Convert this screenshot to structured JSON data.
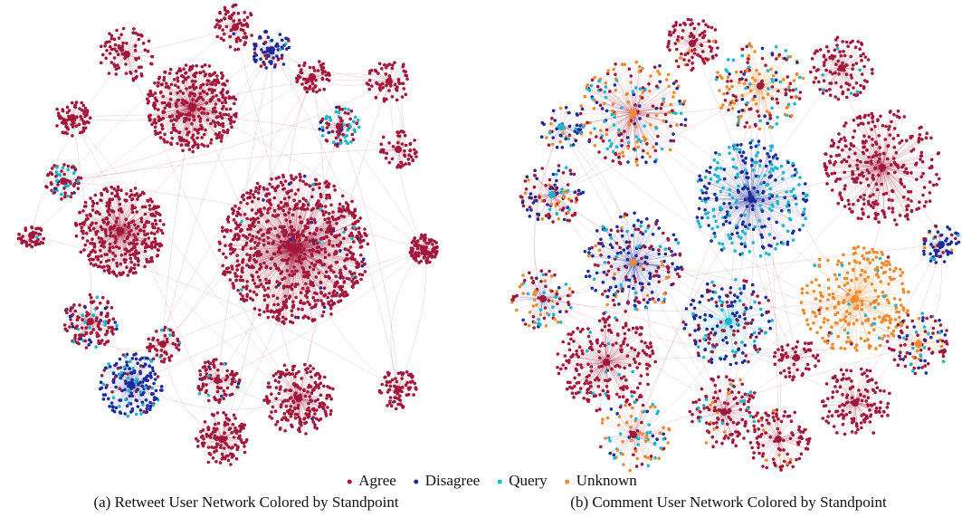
{
  "legend": [
    {
      "name": "Agree",
      "color": "#a3173a"
    },
    {
      "name": "Disagree",
      "color": "#1b2a9c"
    },
    {
      "name": "Query",
      "color": "#19b6d2"
    },
    {
      "name": "Unknown",
      "color": "#f08a2e"
    }
  ],
  "panels": [
    {
      "caption": "(a) Retweet User Network Colored by Standpoint"
    },
    {
      "caption": "(b) Comment User Network Colored by Standpoint"
    }
  ]
}
